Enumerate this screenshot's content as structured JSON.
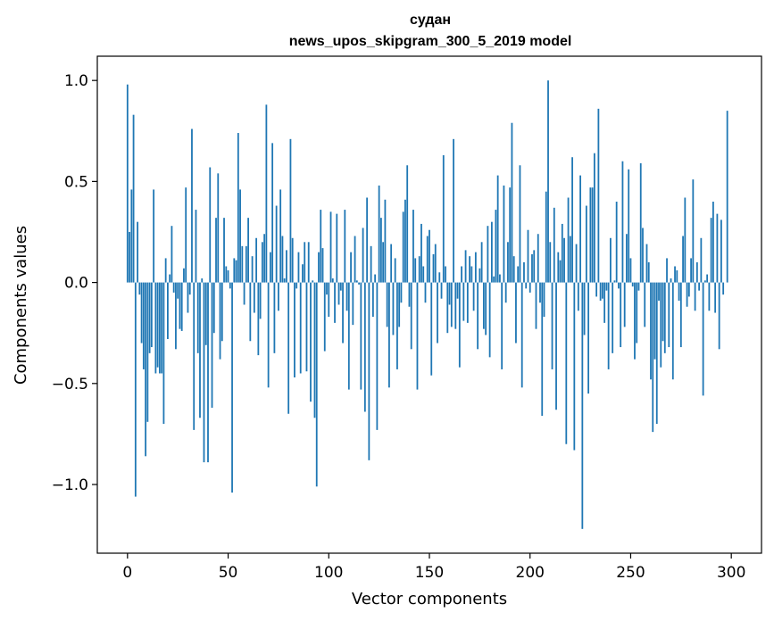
{
  "chart_data": {
    "type": "bar",
    "title_line1": "судан",
    "title_line2": "news_upos_skipgram_300_5_2019 model",
    "xlabel": "Vector components",
    "ylabel": "Components values",
    "xlim": [
      -15,
      315
    ],
    "ylim": [
      -1.34,
      1.12
    ],
    "xticks": [
      0,
      50,
      100,
      150,
      200,
      250,
      300
    ],
    "yticks": [
      -1.0,
      -0.5,
      0.0,
      0.5,
      1.0
    ],
    "xtick_labels": [
      "0",
      "50",
      "100",
      "150",
      "200",
      "250",
      "300"
    ],
    "ytick_labels": [
      "−1.0",
      "−0.5",
      "0.0",
      "0.5",
      "1.0"
    ],
    "bar_color": "#1f77b4",
    "values": [
      0.98,
      0.25,
      0.46,
      0.83,
      -1.06,
      0.3,
      -0.06,
      -0.3,
      -0.43,
      -0.86,
      -0.69,
      -0.35,
      -0.32,
      0.46,
      -0.45,
      -0.42,
      -0.45,
      -0.45,
      -0.7,
      0.12,
      -0.28,
      0.04,
      0.28,
      -0.05,
      -0.33,
      -0.08,
      -0.23,
      -0.24,
      0.07,
      0.47,
      -0.15,
      -0.06,
      0.76,
      -0.73,
      0.36,
      -0.35,
      -0.67,
      0.02,
      -0.89,
      -0.31,
      -0.89,
      0.57,
      -0.62,
      -0.25,
      0.32,
      0.54,
      -0.38,
      -0.29,
      0.32,
      0.08,
      0.06,
      -0.03,
      -1.04,
      0.12,
      0.11,
      0.74,
      0.46,
      0.18,
      -0.11,
      0.18,
      0.32,
      -0.29,
      0.13,
      -0.15,
      0.22,
      -0.36,
      -0.18,
      0.2,
      0.24,
      0.88,
      -0.52,
      0.15,
      0.69,
      -0.35,
      0.38,
      -0.14,
      0.46,
      0.23,
      0.02,
      0.16,
      -0.65,
      0.71,
      0.22,
      -0.47,
      -0.03,
      0.15,
      -0.45,
      0.09,
      0.2,
      -0.44,
      0.2,
      -0.59,
      0.01,
      -0.67,
      -1.01,
      0.15,
      0.36,
      0.17,
      -0.34,
      -0.06,
      -0.17,
      0.35,
      0.02,
      -0.2,
      0.34,
      -0.11,
      -0.04,
      -0.3,
      0.36,
      -0.14,
      -0.53,
      0.15,
      -0.21,
      0.23,
      0.01,
      -0.01,
      -0.53,
      0.27,
      -0.64,
      0.42,
      -0.88,
      0.18,
      -0.17,
      0.04,
      -0.73,
      0.48,
      0.32,
      0.2,
      0.41,
      -0.22,
      -0.52,
      0.19,
      -0.26,
      0.12,
      -0.43,
      -0.22,
      -0.1,
      0.35,
      0.41,
      0.58,
      -0.12,
      -0.33,
      0.36,
      0.12,
      -0.53,
      0.13,
      0.29,
      0.08,
      -0.1,
      0.23,
      0.26,
      -0.46,
      0.14,
      0.19,
      -0.3,
      0.05,
      -0.08,
      0.63,
      0.08,
      -0.25,
      -0.11,
      -0.22,
      0.71,
      -0.23,
      -0.08,
      -0.42,
      0.08,
      -0.19,
      0.16,
      -0.2,
      0.13,
      0.08,
      -0.14,
      0.15,
      -0.33,
      0.07,
      0.2,
      -0.23,
      -0.26,
      0.28,
      -0.37,
      0.3,
      0.03,
      0.36,
      0.53,
      0.04,
      -0.43,
      0.48,
      -0.1,
      0.2,
      0.47,
      0.79,
      0.13,
      -0.3,
      0.08,
      0.58,
      -0.52,
      0.1,
      -0.03,
      0.26,
      -0.05,
      0.14,
      0.16,
      -0.23,
      0.24,
      -0.1,
      -0.66,
      -0.17,
      0.45,
      1.0,
      0.2,
      -0.43,
      0.37,
      -0.63,
      0.15,
      0.11,
      0.29,
      0.22,
      -0.8,
      0.42,
      0.23,
      0.62,
      -0.83,
      0.19,
      -0.14,
      0.53,
      -1.22,
      -0.26,
      0.38,
      -0.55,
      0.47,
      0.47,
      0.64,
      -0.07,
      0.86,
      -0.09,
      -0.08,
      -0.2,
      -0.04,
      -0.43,
      0.22,
      -0.35,
      0.01,
      0.4,
      -0.03,
      -0.32,
      0.6,
      -0.22,
      0.24,
      0.56,
      0.12,
      -0.02,
      -0.38,
      -0.3,
      -0.04,
      0.59,
      0.27,
      -0.22,
      0.19,
      0.1,
      -0.48,
      -0.74,
      -0.38,
      -0.7,
      -0.09,
      -0.42,
      -0.29,
      -0.35,
      0.12,
      -0.32,
      0.02,
      -0.48,
      0.08,
      0.06,
      -0.09,
      -0.32,
      0.23,
      0.42,
      -0.12,
      -0.07,
      0.12,
      0.51,
      -0.14,
      0.1,
      -0.04,
      0.22,
      -0.56,
      0.01,
      0.04,
      -0.14,
      0.32,
      0.4,
      -0.15,
      0.34,
      -0.33,
      0.31,
      -0.06,
      0.0,
      0.85,
      0.0
    ]
  }
}
